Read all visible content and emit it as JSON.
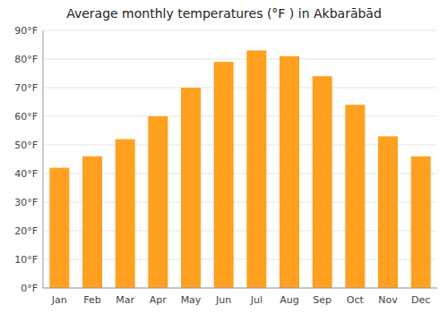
{
  "chart_data": {
    "type": "bar",
    "title": "Average monthly temperatures (°F ) in Akbarābād",
    "categories": [
      "Jan",
      "Feb",
      "Mar",
      "Apr",
      "May",
      "Jun",
      "Jul",
      "Aug",
      "Sep",
      "Oct",
      "Nov",
      "Dec"
    ],
    "values": [
      42,
      46,
      52,
      60,
      70,
      79,
      83,
      81,
      74,
      64,
      53,
      46
    ],
    "color": "#FFA020",
    "ylim": [
      0,
      90
    ],
    "yticks": [
      {
        "value": 0,
        "label": "0°F"
      },
      {
        "value": 10,
        "label": "10°F"
      },
      {
        "value": 20,
        "label": "20°F"
      },
      {
        "value": 30,
        "label": "30°F"
      },
      {
        "value": 40,
        "label": "40°F"
      },
      {
        "value": 50,
        "label": "50°F"
      },
      {
        "value": 60,
        "label": "60°F"
      },
      {
        "value": 70,
        "label": "70°F"
      },
      {
        "value": 80,
        "label": "80°F"
      },
      {
        "value": 90,
        "label": "90°F"
      }
    ],
    "grid": true
  }
}
